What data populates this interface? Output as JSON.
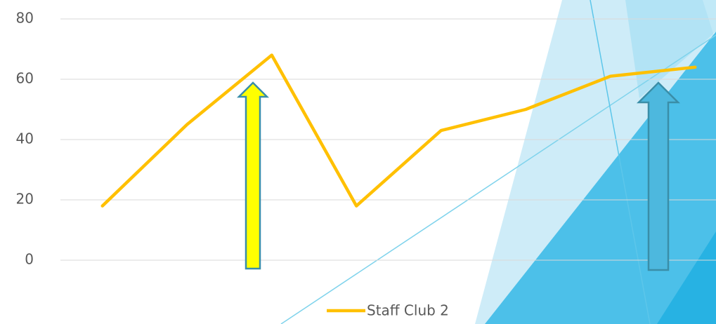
{
  "chart_data": {
    "type": "line",
    "categories": [
      null,
      null,
      null,
      null,
      null,
      null,
      null,
      null
    ],
    "series": [
      {
        "name": "Staff Club 2",
        "color": "#ffc000",
        "values": [
          18,
          45,
          68,
          18,
          43,
          50,
          61,
          64
        ]
      }
    ],
    "ylim": [
      0,
      80
    ],
    "yticks": [
      0,
      20,
      40,
      60,
      80
    ],
    "grid": true,
    "legend": "bottom"
  }
}
